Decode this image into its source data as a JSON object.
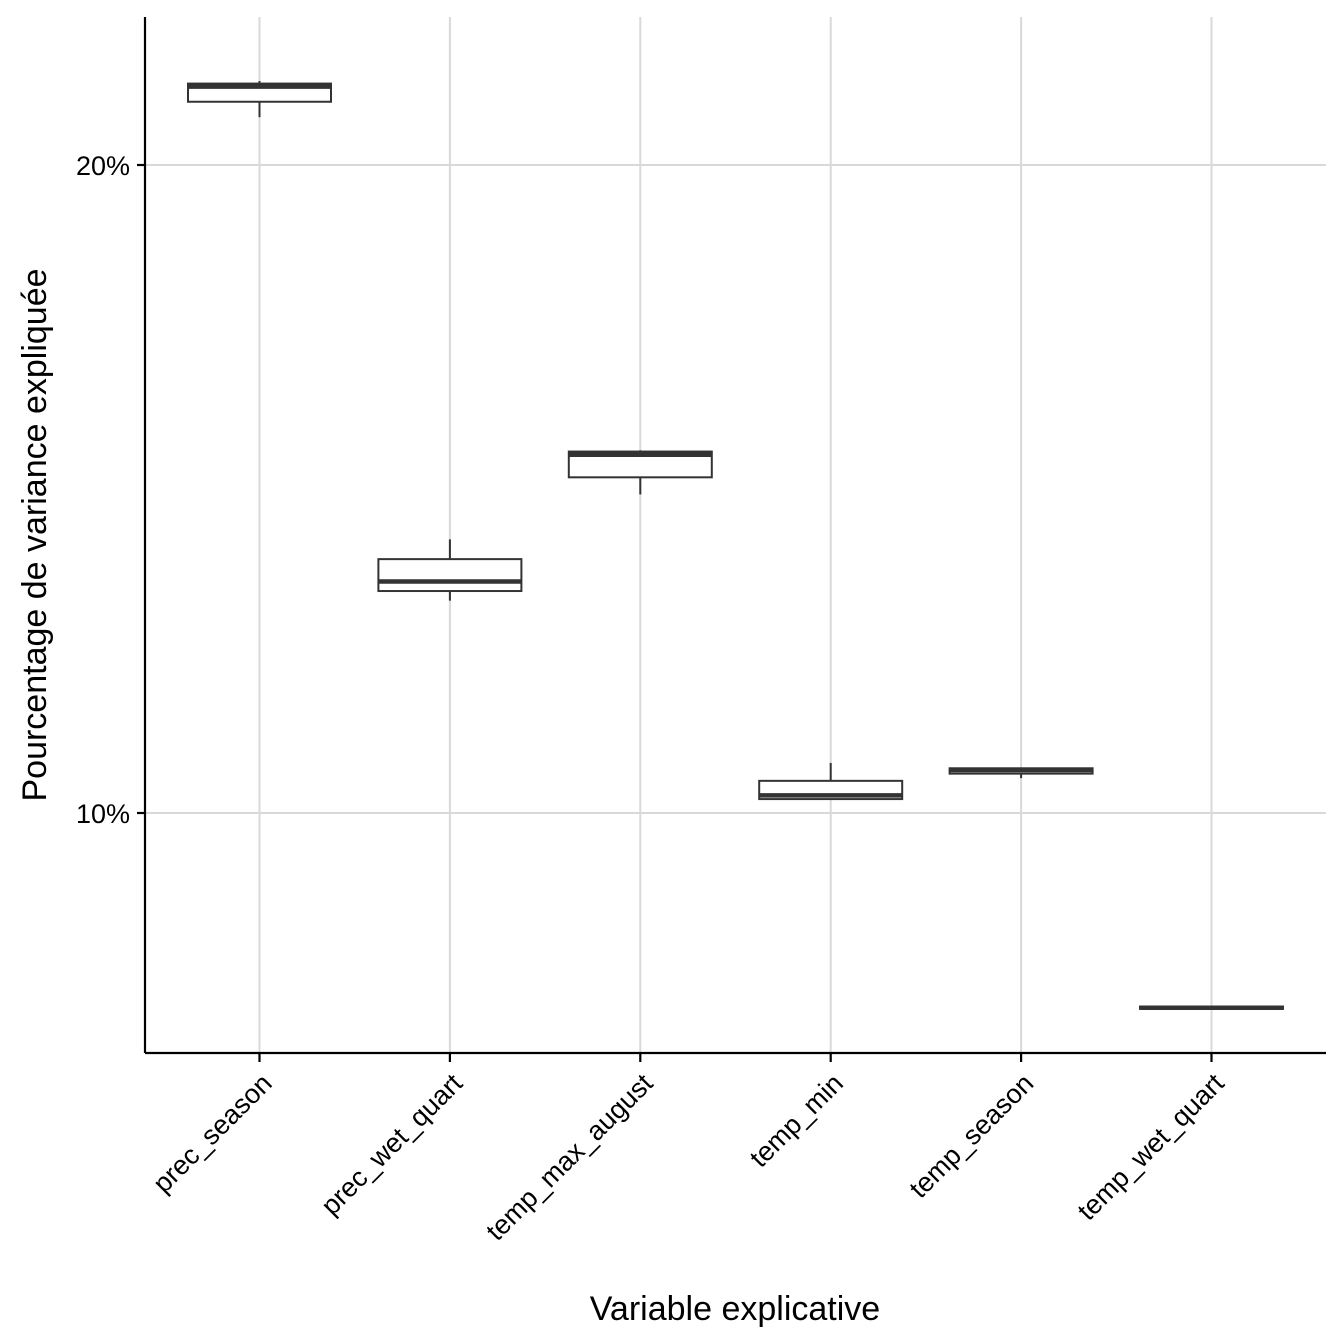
{
  "chart_data": {
    "type": "boxplot",
    "title": "",
    "xlabel": "Variable explicative",
    "ylabel": "Pourcentage de variance expliquée",
    "y_scale": "log",
    "ylim": [
      0.075,
      0.223
    ],
    "y_ticks": [
      {
        "value": 0.1,
        "label": "10%"
      },
      {
        "value": 0.2,
        "label": "20%"
      }
    ],
    "grid": true,
    "categories": [
      "prec_season",
      "prec_wet_quart",
      "temp_max_august",
      "temp_min",
      "temp_season",
      "temp_wet_quart"
    ],
    "boxes": [
      {
        "min": 0.2105,
        "q1": 0.214,
        "median": 0.2175,
        "q3": 0.2182,
        "max": 0.2188
      },
      {
        "min": 0.1255,
        "q1": 0.1268,
        "median": 0.1281,
        "q3": 0.1312,
        "max": 0.134
      },
      {
        "min": 0.1406,
        "q1": 0.1432,
        "median": 0.1467,
        "q3": 0.1472,
        "max": 0.1474
      },
      {
        "min": 0.1015,
        "q1": 0.1015,
        "median": 0.1019,
        "q3": 0.1035,
        "max": 0.1055
      },
      {
        "min": 0.1038,
        "q1": 0.1043,
        "median": 0.1047,
        "q3": 0.1049,
        "max": 0.1049
      },
      {
        "min": 0.0811,
        "q1": 0.0811,
        "median": 0.0812,
        "q3": 0.0813,
        "max": 0.0813
      }
    ],
    "colors": {
      "box_stroke": "#333333",
      "box_fill": "#ffffff",
      "grid": "#d9d9d9",
      "axis": "#000000"
    }
  }
}
